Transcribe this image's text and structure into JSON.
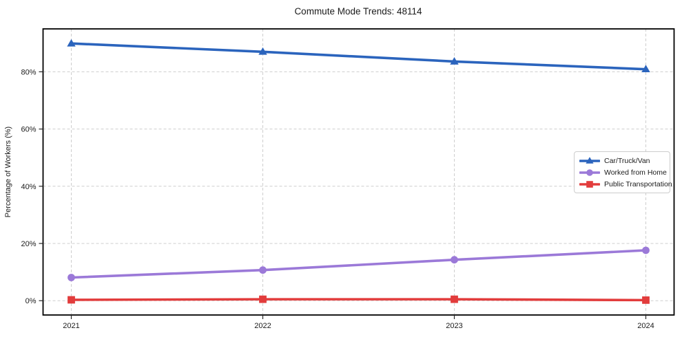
{
  "title": "Commute Mode Trends: 48114",
  "chart_data": {
    "type": "line",
    "title": "Commute Mode Trends: 48114",
    "xlabel": "",
    "ylabel": "Percentage of Workers (%)",
    "x": [
      2021,
      2022,
      2023,
      2024
    ],
    "series": [
      {
        "name": "Car/Truck/Van",
        "values": [
          89.9,
          87.0,
          83.6,
          80.9
        ],
        "color": "#2b64bd",
        "marker": "triangle"
      },
      {
        "name": "Worked from Home",
        "values": [
          8.1,
          10.7,
          14.3,
          17.6
        ],
        "color": "#9b79d8",
        "marker": "circle"
      },
      {
        "name": "Public Transportation",
        "values": [
          0.3,
          0.5,
          0.5,
          0.2
        ],
        "color": "#e23c3c",
        "marker": "square"
      }
    ],
    "ylim": [
      -5,
      95
    ],
    "yticks": [
      0,
      20,
      40,
      60,
      80
    ],
    "ytick_format": "{v}%",
    "grid": true,
    "grid_style": "dashed",
    "legend_position": "center-right",
    "axis_color": "#000000",
    "grid_color": "#cdcdcd"
  }
}
